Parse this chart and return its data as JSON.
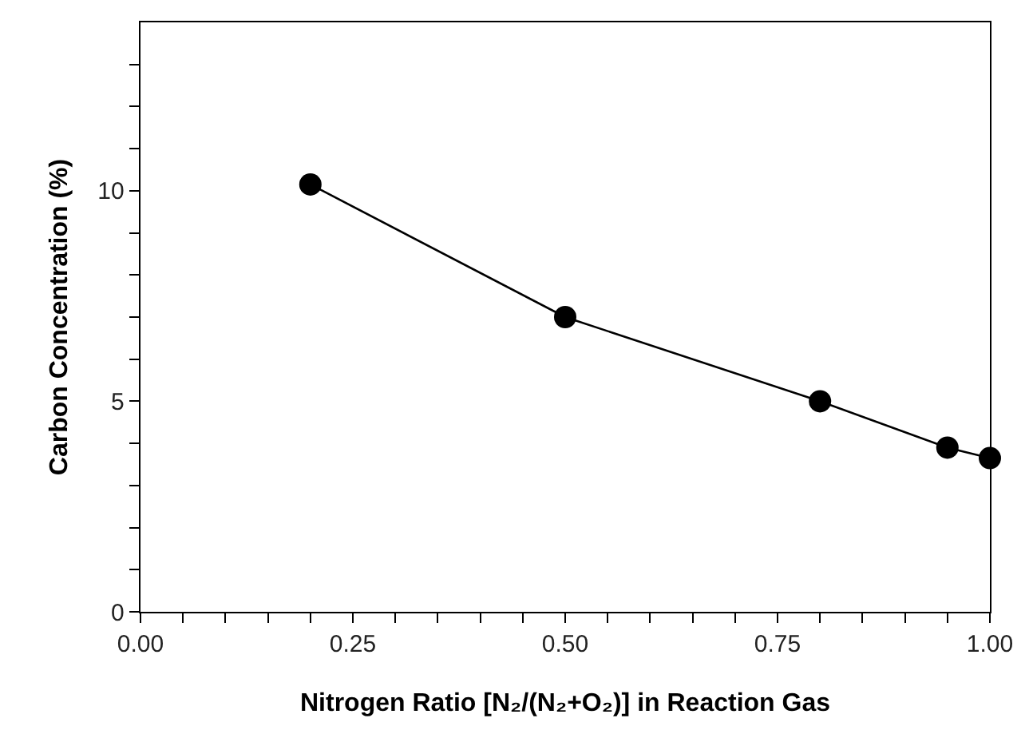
{
  "chart_data": {
    "type": "line",
    "xlabel": "Nitrogen Ratio [N₂/(N₂+O₂)] in Reaction Gas",
    "ylabel": "Carbon Concentration (%)",
    "x": [
      0.2,
      0.5,
      0.8,
      0.95,
      1.0
    ],
    "series": [
      {
        "color": "#000000",
        "values": [
          10.15,
          7.0,
          5.0,
          3.9,
          3.65
        ]
      }
    ],
    "marker": "circle",
    "line_style": "solid",
    "xlim": [
      0,
      1
    ],
    "ylim": [
      0,
      14
    ],
    "xticks": [
      {
        "value": 0,
        "label": "0.00"
      },
      {
        "value": 0.05,
        "label": null
      },
      {
        "value": 0.1,
        "label": null
      },
      {
        "value": 0.15,
        "label": null
      },
      {
        "value": 0.2,
        "label": null
      },
      {
        "value": 0.25,
        "label": "0.25"
      },
      {
        "value": 0.3,
        "label": null
      },
      {
        "value": 0.35,
        "label": null
      },
      {
        "value": 0.4,
        "label": null
      },
      {
        "value": 0.45,
        "label": null
      },
      {
        "value": 0.5,
        "label": "0.50"
      },
      {
        "value": 0.55,
        "label": null
      },
      {
        "value": 0.6,
        "label": null
      },
      {
        "value": 0.65,
        "label": null
      },
      {
        "value": 0.7,
        "label": null
      },
      {
        "value": 0.75,
        "label": "0.75"
      },
      {
        "value": 0.8,
        "label": null
      },
      {
        "value": 0.85,
        "label": null
      },
      {
        "value": 0.9,
        "label": null
      },
      {
        "value": 0.95,
        "label": null
      },
      {
        "value": 1,
        "label": "1.00"
      }
    ],
    "yticks": [
      0,
      {
        "value": 1,
        "label": null
      },
      {
        "value": 2,
        "label": null
      },
      {
        "value": 3,
        "label": null
      },
      {
        "value": 4,
        "label": null
      },
      5,
      {
        "value": 6,
        "label": null
      },
      {
        "value": 7,
        "label": null
      },
      {
        "value": 8,
        "label": null
      },
      {
        "value": 9,
        "label": null
      },
      10,
      {
        "value": 11,
        "label": null
      },
      {
        "value": 12,
        "label": null
      },
      {
        "value": 13,
        "label": null
      }
    ]
  }
}
